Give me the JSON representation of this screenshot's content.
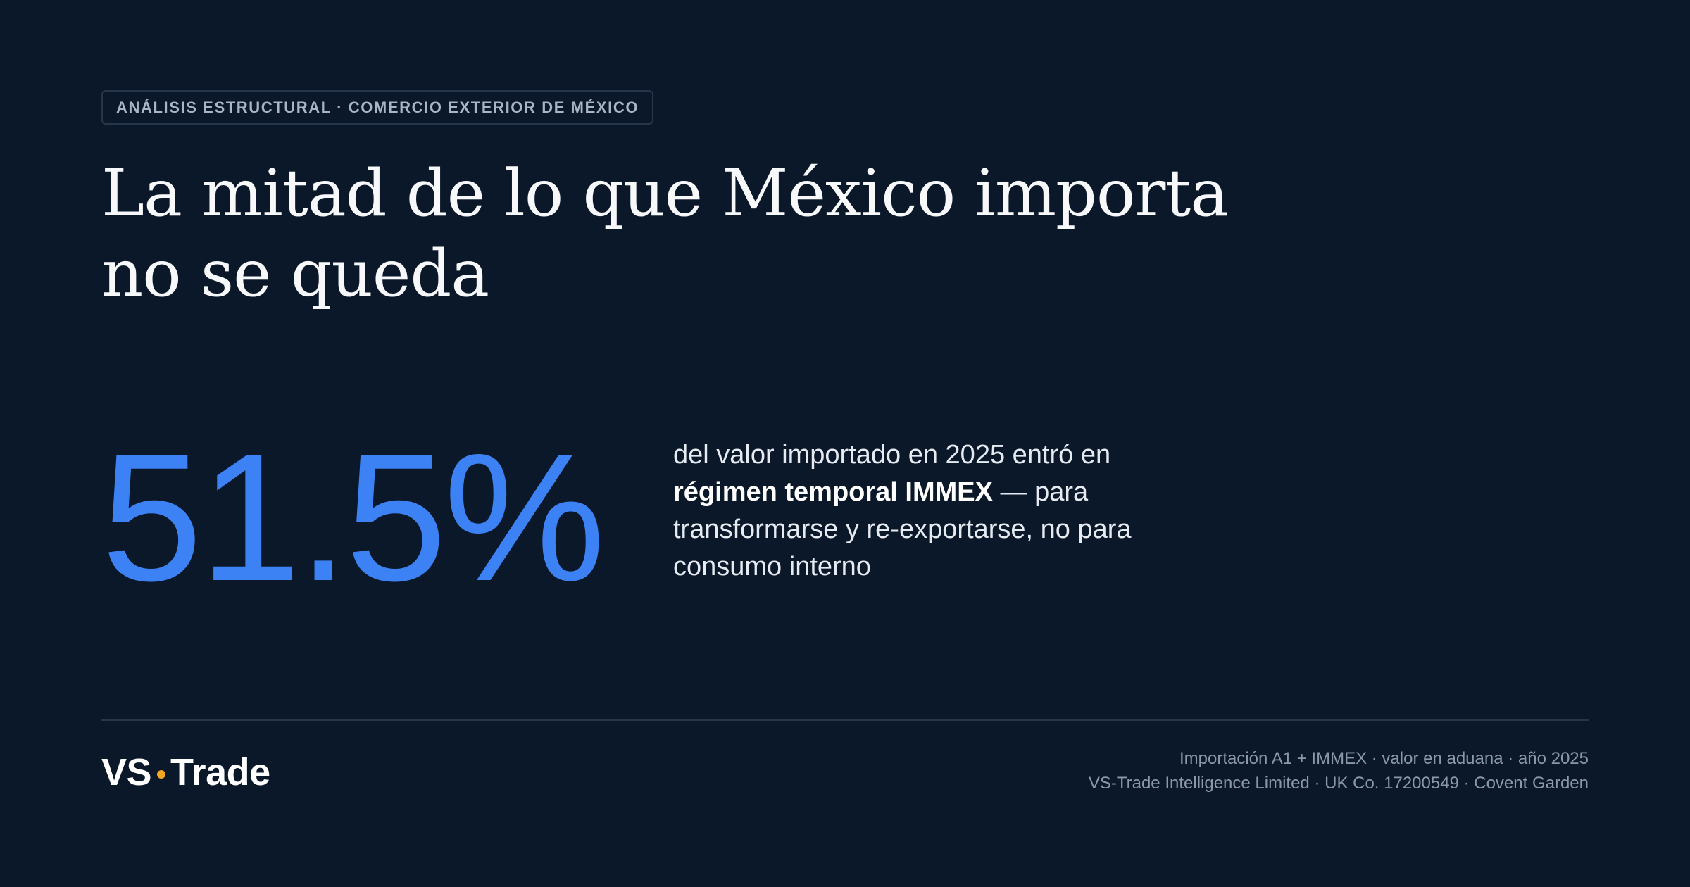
{
  "badge": {
    "label": "ANÁLISIS ESTRUCTURAL · COMERCIO EXTERIOR DE MÉXICO"
  },
  "headline": {
    "text": "La mitad de lo que México importa no se queda"
  },
  "stat": {
    "value": "51.5%",
    "description_before": "del valor importado en 2025 entró en ",
    "description_strong": "régimen temporal IMMEX",
    "description_after": " — para transformarse y re-exportarse, no para consumo interno"
  },
  "footer": {
    "logo_left": "VS",
    "logo_right": "Trade",
    "meta_line_1": "Importación A1 + IMMEX · valor en aduana · año 2025",
    "meta_line_2": "VS-Trade Intelligence Limited · UK Co. 17200549 · Covent Garden"
  },
  "colors": {
    "background": "#0b1829",
    "accent_blue": "#3d82f5",
    "logo_dot": "#f5a623"
  }
}
